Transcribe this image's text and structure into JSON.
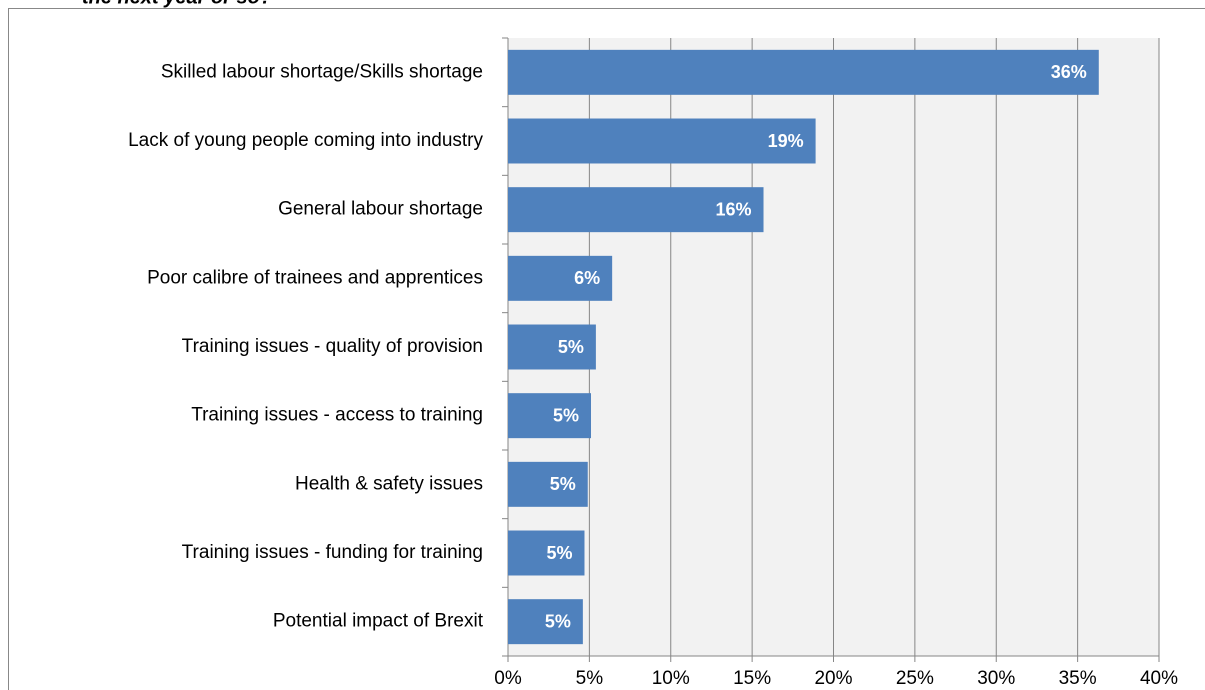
{
  "chart_data": {
    "type": "bar",
    "orientation": "horizontal",
    "title": "the next year or so?",
    "categories": [
      "Skilled labour shortage/Skills shortage",
      "Lack of young people coming into industry",
      "General labour shortage",
      "Poor calibre of trainees and apprentices",
      "Training issues - quality of provision",
      "Training issues - access to training",
      "Health & safety issues",
      "Training issues - funding for training",
      "Potential impact of Brexit"
    ],
    "values": [
      36.3,
      18.9,
      15.7,
      6.4,
      5.4,
      5.1,
      4.9,
      4.7,
      4.6
    ],
    "value_labels": [
      "36%",
      "19%",
      "16%",
      "6%",
      "5%",
      "5%",
      "5%",
      "5%",
      "5%"
    ],
    "color": "#4f81bd",
    "xlim": [
      0,
      40
    ],
    "xticks": [
      {
        "value": 0,
        "label": "0%"
      },
      {
        "value": 5,
        "label": "5%"
      },
      {
        "value": 10,
        "label": "10%"
      },
      {
        "value": 15,
        "label": "15%"
      },
      {
        "value": 20,
        "label": "20%"
      },
      {
        "value": 25,
        "label": "25%"
      },
      {
        "value": 30,
        "label": "30%"
      },
      {
        "value": 35,
        "label": "35%"
      },
      {
        "value": 40,
        "label": "40%"
      }
    ],
    "grid": true
  }
}
